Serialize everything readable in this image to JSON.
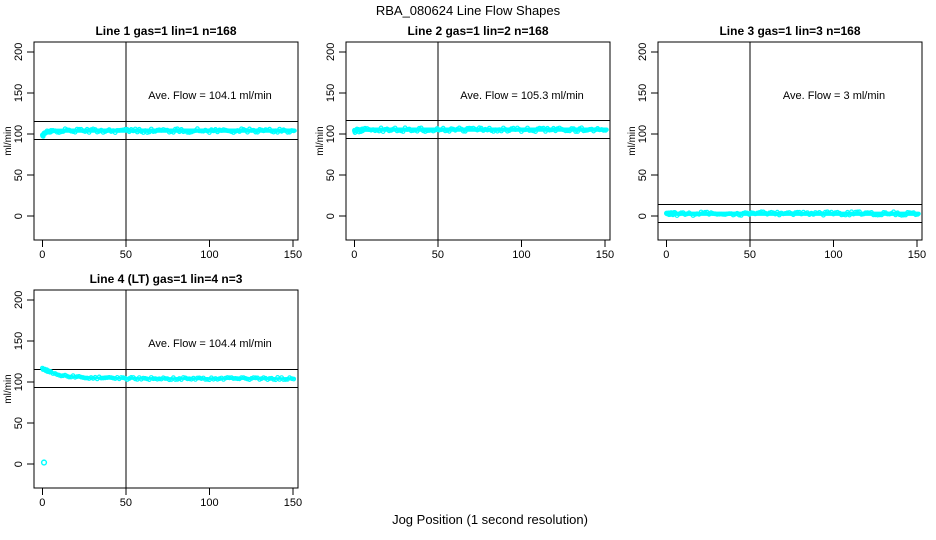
{
  "figure": {
    "title": "RBA_080624  Line Flow Shapes",
    "xlabel": "Jog Position (1 second resolution)",
    "ylabel": "ml/min",
    "background_color": "#FFFFFF",
    "axis_color": "#000000",
    "marker_color": "#00FFFF"
  },
  "chart_data": {
    "type": "scatter",
    "title": "RBA_080624  Line Flow Shapes",
    "xlabel": "Jog Position (1 second resolution)",
    "ylabel": "ml/min",
    "xlim": [
      -5,
      153
    ],
    "ylim": [
      -29,
      212
    ],
    "x_ticks": [
      0,
      50,
      100,
      150
    ],
    "y_ticks": [
      0,
      50,
      100,
      150,
      200
    ],
    "grid": false,
    "vline_x": 50,
    "tolerance_band": 11,
    "marker_color": "#00FFFF",
    "panels": [
      {
        "title": "Line 1 gas=1 lin=1 n=168",
        "annotation": "Ave. Flow =  104.1  ml/min",
        "ave_flow": 104.1,
        "n": 168,
        "trace": {
          "x": [
            0,
            1,
            2,
            3,
            5,
            7,
            10,
            15,
            150
          ],
          "y": [
            97.5,
            99.7,
            101.1,
            102.1,
            103.2,
            103.7,
            104.0,
            104.1,
            104.1
          ]
        },
        "band_halfwidth": 2.6,
        "outliers": []
      },
      {
        "title": "Line 2 gas=1 lin=2 n=168",
        "annotation": "Ave. Flow =  105.3  ml/min",
        "ave_flow": 105.3,
        "n": 168,
        "trace": {
          "x": [
            0,
            1,
            2,
            3,
            5,
            7,
            10,
            150
          ],
          "y": [
            103.2,
            104.0,
            104.5,
            104.8,
            105.1,
            105.2,
            105.3,
            105.3
          ]
        },
        "band_halfwidth": 2.6,
        "outliers": []
      },
      {
        "title": "Line 3 gas=1 lin=3 n=168",
        "annotation": "Ave. Flow =  3  ml/min",
        "ave_flow": 3,
        "n": 168,
        "trace": {
          "x": [
            0,
            150
          ],
          "y": [
            3,
            3
          ]
        },
        "band_halfwidth": 2.6,
        "outliers": []
      },
      {
        "title": "Line 4 (LT) gas=1 lin=4 n=3",
        "annotation": "Ave. Flow =  104.4  ml/min",
        "ave_flow": 104.4,
        "n": 3,
        "trace": {
          "x": [
            0,
            1,
            2,
            3,
            5,
            7,
            10,
            15,
            20,
            30,
            50,
            75,
            150
          ],
          "y": [
            116.5,
            115.4,
            114.5,
            113.6,
            112.0,
            110.7,
            109.2,
            107.3,
            106.2,
            105.0,
            104.4,
            104.2,
            104.2
          ]
        },
        "band_halfwidth": 1.6,
        "outliers": [
          [
            1,
            2
          ]
        ]
      }
    ]
  }
}
